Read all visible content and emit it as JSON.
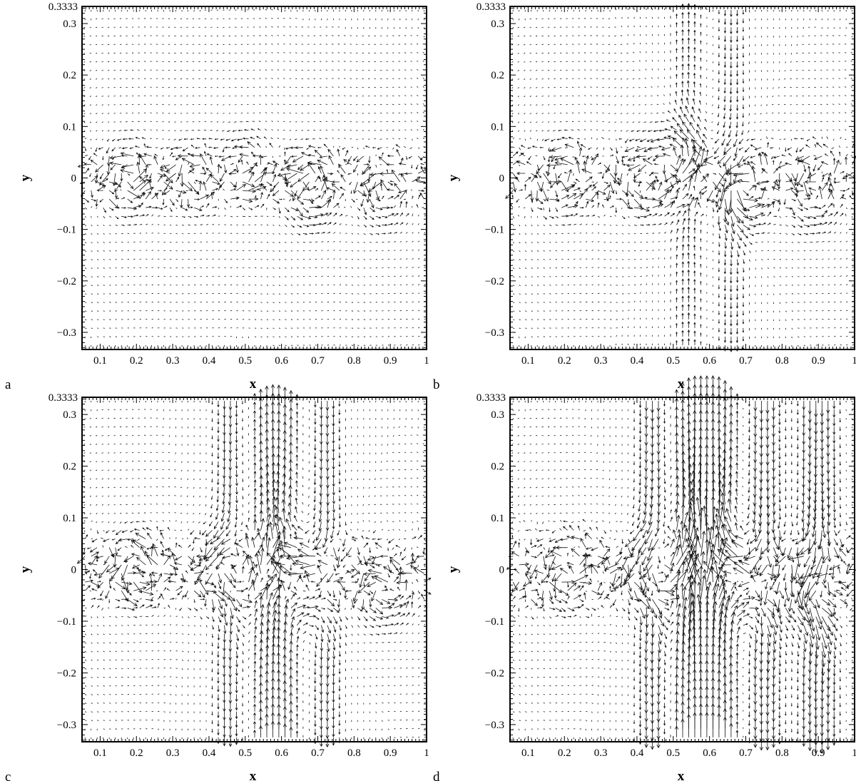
{
  "chart_data": [
    {
      "panel": "a",
      "type": "quiver",
      "xlabel": "x",
      "ylabel": "y",
      "xlim": [
        0.05,
        1.0
      ],
      "ylim": [
        -0.3333,
        0.3333
      ],
      "x_ticks": [
        "0.1",
        "0.2",
        "0.3",
        "0.4",
        "0.5",
        "0.6",
        "0.7",
        "0.8",
        "0.9",
        "1"
      ],
      "y_ticks": [
        "-0.3",
        "-0.2",
        "-0.1",
        "0",
        "0.1",
        "0.2",
        "0.3"
      ],
      "y_top_label": "0.3333",
      "grid_spacing": 0.0167,
      "disturbed_band": [
        -0.08,
        0.08
      ],
      "vortex_cores": [
        {
          "x": 0.18,
          "y": 0.0,
          "strength": 0.05
        },
        {
          "x": 0.36,
          "y": 0.0,
          "strength": 0.04
        },
        {
          "x": 0.5,
          "y": 0.02,
          "strength": 0.04
        },
        {
          "x": 0.68,
          "y": -0.02,
          "strength": 0.06
        },
        {
          "x": 0.88,
          "y": -0.03,
          "strength": 0.04
        }
      ],
      "updraft_columns": [],
      "grid": false
    },
    {
      "panel": "b",
      "type": "quiver",
      "xlabel": "x",
      "ylabel": "y",
      "xlim": [
        0.05,
        1.0
      ],
      "ylim": [
        -0.3333,
        0.3333
      ],
      "x_ticks": [
        "0.1",
        "0.2",
        "0.3",
        "0.4",
        "0.5",
        "0.6",
        "0.7",
        "0.8",
        "0.9",
        "1"
      ],
      "y_ticks": [
        "-0.3",
        "-0.2",
        "-0.1",
        "0",
        "0.1",
        "0.2",
        "0.3"
      ],
      "y_top_label": "0.3333",
      "grid_spacing": 0.0167,
      "disturbed_band": [
        -0.09,
        0.09
      ],
      "vortex_cores": [
        {
          "x": 0.2,
          "y": 0.0,
          "strength": 0.05
        },
        {
          "x": 0.42,
          "y": 0.0,
          "strength": 0.05
        },
        {
          "x": 0.52,
          "y": 0.03,
          "strength": 0.05
        },
        {
          "x": 0.7,
          "y": -0.02,
          "strength": 0.06
        },
        {
          "x": 0.88,
          "y": -0.03,
          "strength": 0.05
        }
      ],
      "updraft_columns": [
        {
          "x": 0.54,
          "strength": 0.02,
          "width": 0.05
        },
        {
          "x": 0.66,
          "strength": -0.02,
          "width": 0.05
        }
      ],
      "grid": false
    },
    {
      "panel": "c",
      "type": "quiver",
      "xlabel": "x",
      "ylabel": "y",
      "xlim": [
        0.05,
        1.0
      ],
      "ylim": [
        -0.3333,
        0.3333
      ],
      "x_ticks": [
        "0.1",
        "0.2",
        "0.3",
        "0.4",
        "0.5",
        "0.6",
        "0.7",
        "0.8",
        "0.9",
        "1"
      ],
      "y_ticks": [
        "-0.3",
        "-0.2",
        "-0.1",
        "0",
        "0.1",
        "0.2",
        "0.3"
      ],
      "y_top_label": "0.3333",
      "grid_spacing": 0.0167,
      "disturbed_band": [
        -0.1,
        0.1
      ],
      "vortex_cores": [
        {
          "x": 0.2,
          "y": 0.0,
          "strength": 0.05
        },
        {
          "x": 0.44,
          "y": 0.0,
          "strength": 0.05
        },
        {
          "x": 0.66,
          "y": -0.03,
          "strength": 0.06
        },
        {
          "x": 0.88,
          "y": -0.04,
          "strength": 0.05
        }
      ],
      "updraft_columns": [
        {
          "x": 0.58,
          "strength": 0.05,
          "width": 0.07
        },
        {
          "x": 0.46,
          "strength": -0.03,
          "width": 0.05
        },
        {
          "x": 0.72,
          "strength": -0.03,
          "width": 0.05
        }
      ],
      "grid": false
    },
    {
      "panel": "d",
      "type": "quiver",
      "xlabel": "x",
      "ylabel": "y",
      "xlim": [
        0.05,
        1.0
      ],
      "ylim": [
        -0.3333,
        0.3333
      ],
      "x_ticks": [
        "0.1",
        "0.2",
        "0.3",
        "0.4",
        "0.5",
        "0.6",
        "0.7",
        "0.8",
        "0.9",
        "1"
      ],
      "y_ticks": [
        "-0.3",
        "-0.2",
        "-0.1",
        "0",
        "0.1",
        "0.2",
        "0.3"
      ],
      "y_top_label": "0.3333",
      "grid_spacing": 0.0167,
      "disturbed_band": [
        -0.11,
        0.11
      ],
      "vortex_cores": [
        {
          "x": 0.2,
          "y": 0.0,
          "strength": 0.05
        },
        {
          "x": 0.44,
          "y": 0.0,
          "strength": 0.05
        },
        {
          "x": 0.68,
          "y": -0.03,
          "strength": 0.06
        },
        {
          "x": 0.88,
          "y": -0.04,
          "strength": 0.05
        }
      ],
      "updraft_columns": [
        {
          "x": 0.55,
          "strength": 0.07,
          "width": 0.06
        },
        {
          "x": 0.63,
          "strength": 0.06,
          "width": 0.05
        },
        {
          "x": 0.45,
          "strength": -0.04,
          "width": 0.05
        },
        {
          "x": 0.75,
          "strength": -0.04,
          "width": 0.05
        },
        {
          "x": 0.9,
          "strength": -0.05,
          "width": 0.05
        }
      ],
      "grid": false
    }
  ]
}
